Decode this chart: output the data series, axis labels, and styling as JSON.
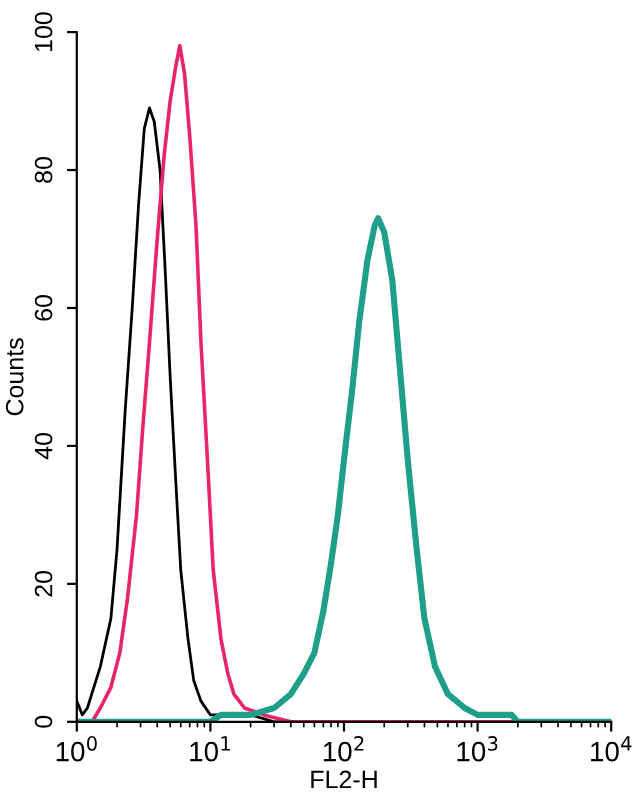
{
  "chart_data": {
    "type": "line",
    "xlabel": "FL2-H",
    "ylabel": "Counts",
    "log": "x",
    "grid": false,
    "legend": false,
    "xlim": [
      1,
      10000
    ],
    "ylim": [
      0,
      100
    ],
    "xticks": [
      {
        "value": 1,
        "label": "10$^{0}$"
      },
      {
        "value": 10,
        "label": "10$^{1}$"
      },
      {
        "value": 100,
        "label": "10$^{2}$"
      },
      {
        "value": 1000,
        "label": "10$^{3}$"
      },
      {
        "value": 10000,
        "label": "10$^{4}$"
      }
    ],
    "yticks": [
      0,
      20,
      40,
      60,
      80,
      100
    ],
    "series": [
      {
        "color": "#000000",
        "x": [
          1,
          1.1,
          1.2,
          1.5,
          1.8,
          2.0,
          2.3,
          2.6,
          2.9,
          3.2,
          3.5,
          3.8,
          4.2,
          4.6,
          5.0,
          5.5,
          6,
          6.8,
          7.5,
          8.5,
          10,
          12,
          15,
          20,
          30,
          100,
          10000
        ],
        "values": [
          3,
          1,
          2,
          8,
          15,
          25,
          45,
          60,
          75,
          86,
          89,
          87,
          80,
          65,
          50,
          35,
          22,
          12,
          6,
          3,
          1,
          1,
          1,
          1,
          0,
          0,
          0
        ]
      },
      {
        "color": "#e8246c",
        "x": [
          1,
          1.3,
          1.5,
          1.8,
          2.1,
          2.4,
          2.8,
          3.1,
          3.5,
          4,
          4.5,
          5,
          5.5,
          5.9,
          6.4,
          7,
          7.8,
          8.5,
          9.5,
          10.5,
          12,
          13.5,
          15,
          18,
          25,
          40,
          10000
        ],
        "values": [
          0,
          0,
          2,
          5,
          10,
          18,
          30,
          42,
          55,
          70,
          82,
          90,
          95,
          98,
          94,
          85,
          72,
          55,
          38,
          22,
          12,
          7,
          4,
          2,
          1,
          0,
          0
        ]
      },
      {
        "color": "#1f9e89",
        "x": [
          1,
          10,
          12,
          20,
          30,
          40,
          50,
          60,
          70,
          80,
          90,
          100,
          115,
          130,
          150,
          170,
          180,
          200,
          230,
          260,
          300,
          350,
          400,
          480,
          600,
          800,
          1000,
          1800,
          2000,
          10000
        ],
        "values": [
          0,
          0,
          1,
          1,
          2,
          4,
          7,
          10,
          16,
          23,
          30,
          38,
          48,
          58,
          67,
          72,
          73,
          71,
          64,
          52,
          38,
          25,
          15,
          8,
          4,
          2,
          1,
          1,
          0,
          0
        ]
      }
    ]
  }
}
